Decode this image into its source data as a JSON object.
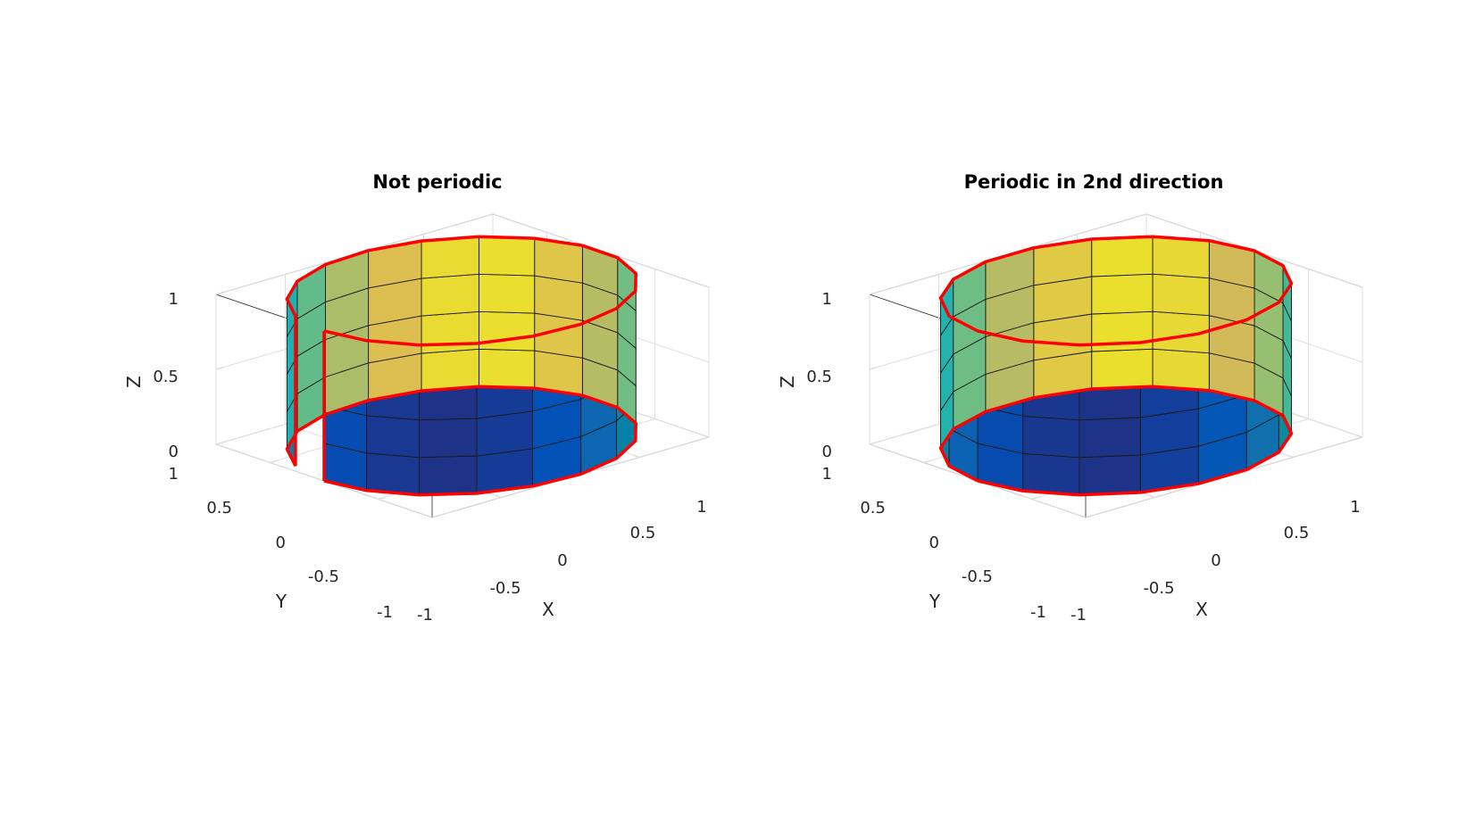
{
  "figure": {
    "background": "#ffffff",
    "box_color": "#262626",
    "grid_color": "#dedede",
    "edge_color": "#1a1a1a",
    "boundary_color": "#ff0000"
  },
  "chart_data": [
    {
      "type": "surface",
      "title": "Not periodic",
      "xlabel": "X",
      "ylabel": "Y",
      "zlabel": "Z",
      "xlim": [
        -1,
        1
      ],
      "ylim": [
        -1,
        1
      ],
      "zlim": [
        0,
        1
      ],
      "xticks": [
        -1,
        -0.5,
        0,
        0.5,
        1
      ],
      "yticks": [
        -1,
        -0.5,
        0,
        0.5,
        1
      ],
      "zticks": [
        0,
        0.5,
        1
      ],
      "xtick_labels": [
        "-1",
        "-0.5",
        "0",
        "0.5",
        "1"
      ],
      "ytick_labels": [
        "-1",
        "-0.5",
        "0",
        "0.5",
        "1"
      ],
      "ztick_labels": [
        "0",
        "0.5",
        "1"
      ],
      "grid": true,
      "surface": "cylinder",
      "radius": 1,
      "height": 1,
      "angular_segments": 18,
      "height_segments": 4,
      "theta_start_deg": 180,
      "theta_end_deg": 520,
      "periodic": false,
      "boundary_highlight": true,
      "colormap": "parula",
      "view": {
        "azimuth": -37.5,
        "elevation": 30
      }
    },
    {
      "type": "surface",
      "title": "Periodic in 2nd direction",
      "xlabel": "X",
      "ylabel": "Y",
      "zlabel": "Z",
      "xlim": [
        -1,
        1
      ],
      "ylim": [
        -1,
        1
      ],
      "zlim": [
        0,
        1
      ],
      "xticks": [
        -1,
        -0.5,
        0,
        0.5,
        1
      ],
      "yticks": [
        -1,
        -0.5,
        0,
        0.5,
        1
      ],
      "zticks": [
        0,
        0.5,
        1
      ],
      "xtick_labels": [
        "-1",
        "-0.5",
        "0",
        "0.5",
        "1"
      ],
      "ytick_labels": [
        "-1",
        "-0.5",
        "0",
        "0.5",
        "1"
      ],
      "ztick_labels": [
        "0",
        "0.5",
        "1"
      ],
      "grid": true,
      "surface": "cylinder",
      "radius": 1,
      "height": 1,
      "angular_segments": 18,
      "height_segments": 4,
      "theta_start_deg": 180,
      "theta_end_deg": 540,
      "periodic": true,
      "boundary_highlight": true,
      "colormap": "parula",
      "view": {
        "azimuth": -37.5,
        "elevation": 30
      }
    }
  ]
}
